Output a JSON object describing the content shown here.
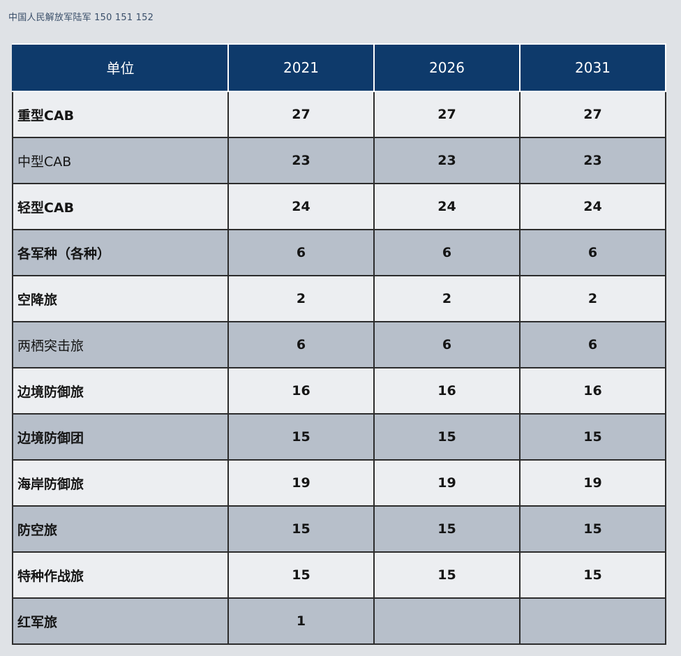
{
  "caption": "中国人民解放军陆军 150 151 152",
  "table": {
    "headers": [
      "单位",
      "2021",
      "2026",
      "2031"
    ],
    "rows": [
      {
        "unit": "重型CAB",
        "values": [
          "27",
          "27",
          "27"
        ]
      },
      {
        "unit": "中型CAB",
        "values": [
          "23",
          "23",
          "23"
        ]
      },
      {
        "unit": "轻型CAB",
        "values": [
          "24",
          "24",
          "24"
        ]
      },
      {
        "unit": "各军种（各种）",
        "values": [
          "6",
          "6",
          "6"
        ]
      },
      {
        "unit": "空降旅",
        "values": [
          "2",
          "2",
          "2"
        ]
      },
      {
        "unit": "两栖突击旅",
        "values": [
          "6",
          "6",
          "6"
        ]
      },
      {
        "unit": "边境防御旅",
        "values": [
          "16",
          "16",
          "16"
        ]
      },
      {
        "unit": "边境防御团",
        "values": [
          "15",
          "15",
          "15"
        ]
      },
      {
        "unit": "海岸防御旅",
        "values": [
          "19",
          "19",
          "19"
        ]
      },
      {
        "unit": "防空旅",
        "values": [
          "15",
          "15",
          "15"
        ]
      },
      {
        "unit": "特种作战旅",
        "values": [
          "15",
          "15",
          "15"
        ]
      },
      {
        "unit": "红军旅",
        "values": [
          "1",
          "",
          ""
        ]
      }
    ]
  },
  "colors": {
    "header_bg": "#0e3a6b",
    "row_light": "#eceef1",
    "row_dark": "#b7bfca"
  }
}
